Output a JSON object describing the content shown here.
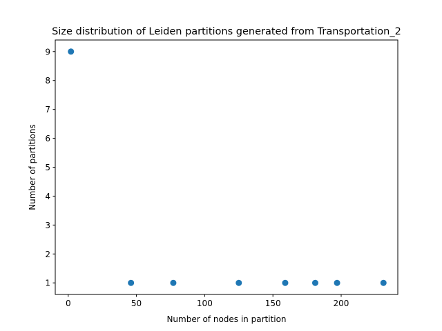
{
  "chart_data": {
    "type": "scatter",
    "title": "Size distribution of Leiden partitions generated from Transportation_2",
    "xlabel": "Number of nodes in partition",
    "ylabel": "Number of partitions",
    "xlim": [
      -9.5,
      241.5
    ],
    "ylim": [
      0.6,
      9.4
    ],
    "xticks": [
      0,
      50,
      100,
      150,
      200
    ],
    "yticks": [
      1,
      2,
      3,
      4,
      5,
      6,
      7,
      8,
      9
    ],
    "grid": false,
    "points": [
      {
        "x": 2,
        "y": 9
      },
      {
        "x": 46,
        "y": 1
      },
      {
        "x": 77,
        "y": 1
      },
      {
        "x": 125,
        "y": 1
      },
      {
        "x": 159,
        "y": 1
      },
      {
        "x": 181,
        "y": 1
      },
      {
        "x": 197,
        "y": 1
      },
      {
        "x": 231,
        "y": 1
      }
    ],
    "marker_color": "#1f77b4"
  }
}
